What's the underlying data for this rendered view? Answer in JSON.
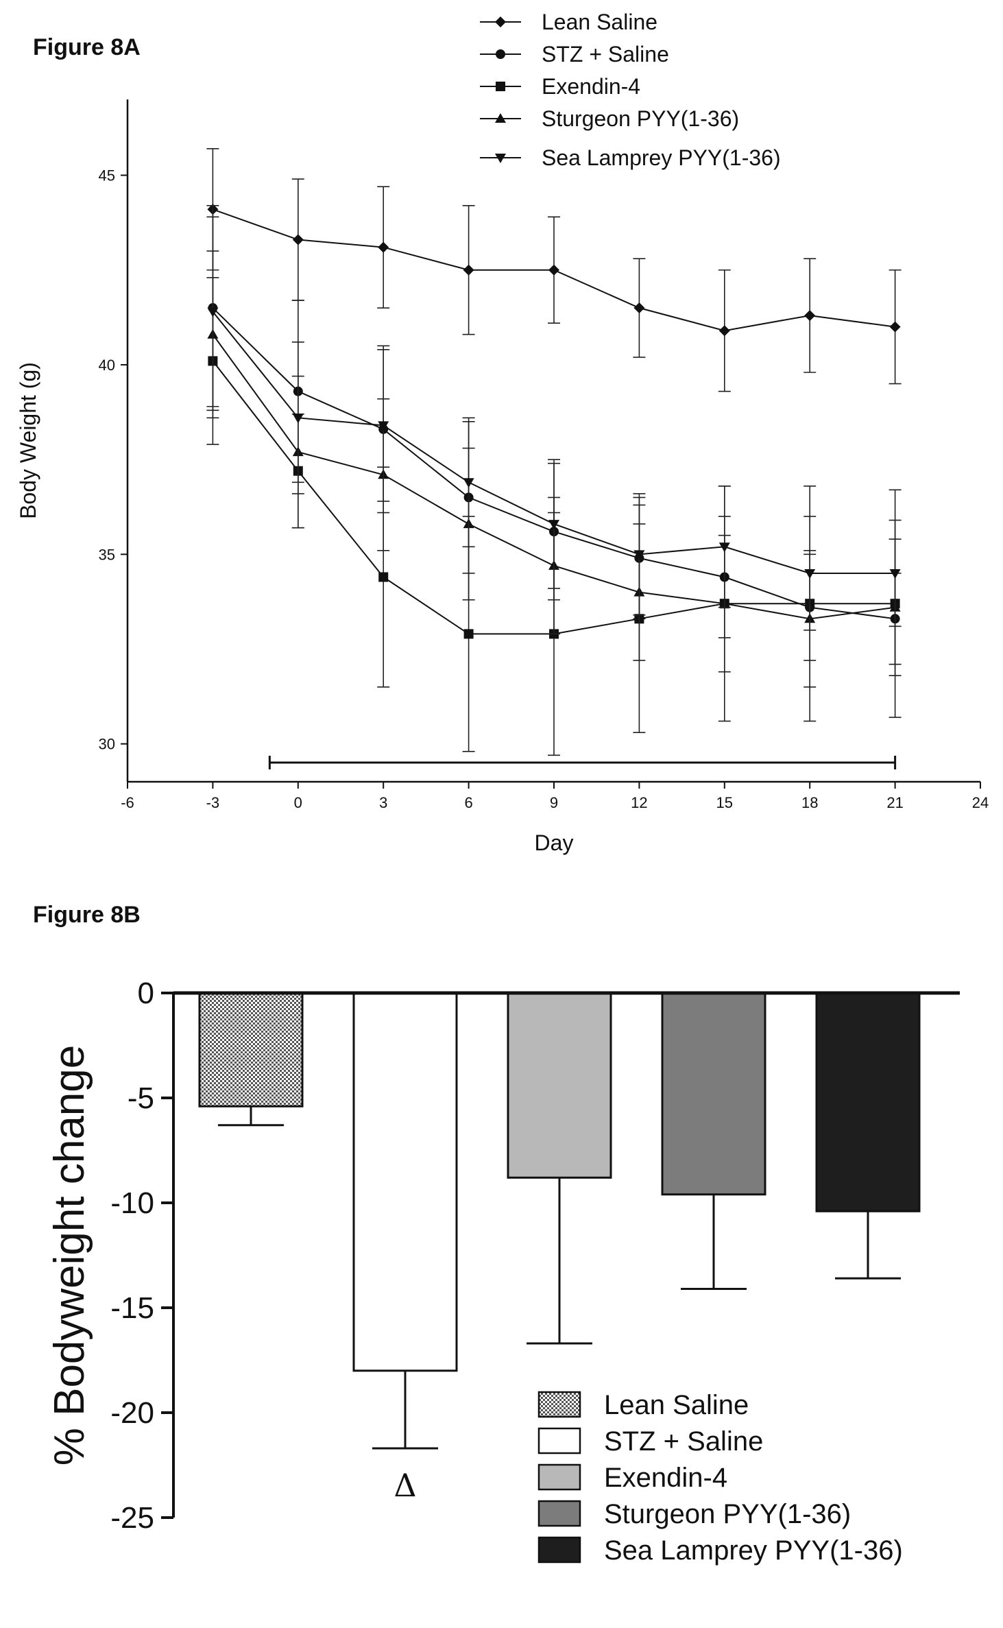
{
  "figure_a_label": "Figure 8A",
  "figure_b_label": "Figure 8B",
  "chart_data": [
    {
      "type": "line",
      "xlabel": "Day",
      "ylabel": "Body Weight (g)",
      "xlim": [
        -6,
        24
      ],
      "ylim": [
        29,
        47
      ],
      "xticks": [
        -6,
        -3,
        0,
        3,
        6,
        9,
        12,
        15,
        18,
        21,
        24
      ],
      "yticks": [
        30,
        35,
        40,
        45
      ],
      "legend_position": "top-right",
      "treatment_period": [
        -1,
        21
      ],
      "x": [
        -3,
        0,
        3,
        6,
        9,
        12,
        15,
        18,
        21
      ],
      "series": [
        {
          "name": "Lean Saline",
          "marker": "diamond",
          "values": [
            44.1,
            43.3,
            43.1,
            42.5,
            42.5,
            41.5,
            40.9,
            41.3,
            41.0
          ],
          "errors": [
            1.6,
            1.6,
            1.6,
            1.7,
            1.4,
            1.3,
            1.6,
            1.5,
            1.5
          ]
        },
        {
          "name": "STZ + Saline",
          "marker": "circle",
          "values": [
            41.5,
            39.3,
            38.3,
            36.5,
            35.6,
            34.9,
            34.4,
            33.6,
            33.3
          ],
          "errors": [
            2.7,
            2.4,
            2.2,
            2.0,
            1.8,
            1.6,
            1.6,
            1.4,
            1.2
          ]
        },
        {
          "name": "Exendin-4",
          "marker": "square",
          "values": [
            40.1,
            37.2,
            34.4,
            32.9,
            32.9,
            33.3,
            33.7,
            33.7,
            33.7
          ],
          "errors": [
            2.2,
            1.5,
            2.9,
            3.1,
            3.2,
            3.0,
            3.1,
            3.1,
            3.0
          ]
        },
        {
          "name": "Sturgeon PYY(1-36)",
          "marker": "triangle-up",
          "values": [
            40.8,
            37.7,
            37.1,
            35.8,
            34.7,
            34.0,
            33.7,
            33.3,
            33.6
          ],
          "errors": [
            2.2,
            2.0,
            2.0,
            2.0,
            1.8,
            1.8,
            1.8,
            1.8,
            1.8
          ]
        },
        {
          "name": "Sea Lamprey PYY(1-36)",
          "marker": "triangle-down",
          "values": [
            41.4,
            38.6,
            38.4,
            36.9,
            35.8,
            35.0,
            35.2,
            34.5,
            34.5
          ],
          "errors": [
            2.5,
            2.0,
            2.0,
            1.7,
            1.7,
            1.6,
            1.6,
            1.5,
            1.4
          ]
        }
      ]
    },
    {
      "type": "bar",
      "ylabel": "% Bodyweight change",
      "ylim": [
        -25,
        0
      ],
      "yticks": [
        0,
        -5,
        -10,
        -15,
        -20,
        -25
      ],
      "legend_position": "bottom-right",
      "categories": [
        "Lean Saline",
        "STZ + Saline",
        "Exendin-4",
        "Sturgeon PYY(1-36)",
        "Sea Lamprey PYY(1-36)"
      ],
      "values": [
        -5.4,
        -18.0,
        -8.8,
        -9.6,
        -10.4
      ],
      "errors": [
        0.9,
        3.7,
        7.9,
        4.5,
        3.2
      ],
      "colors": [
        "#d4d4d4",
        "#ffffff",
        "#b8b8b8",
        "#7c7c7c",
        "#1e1e1e"
      ],
      "annotations": [
        {
          "category": "STZ + Saline",
          "text": "Δ"
        }
      ]
    }
  ]
}
